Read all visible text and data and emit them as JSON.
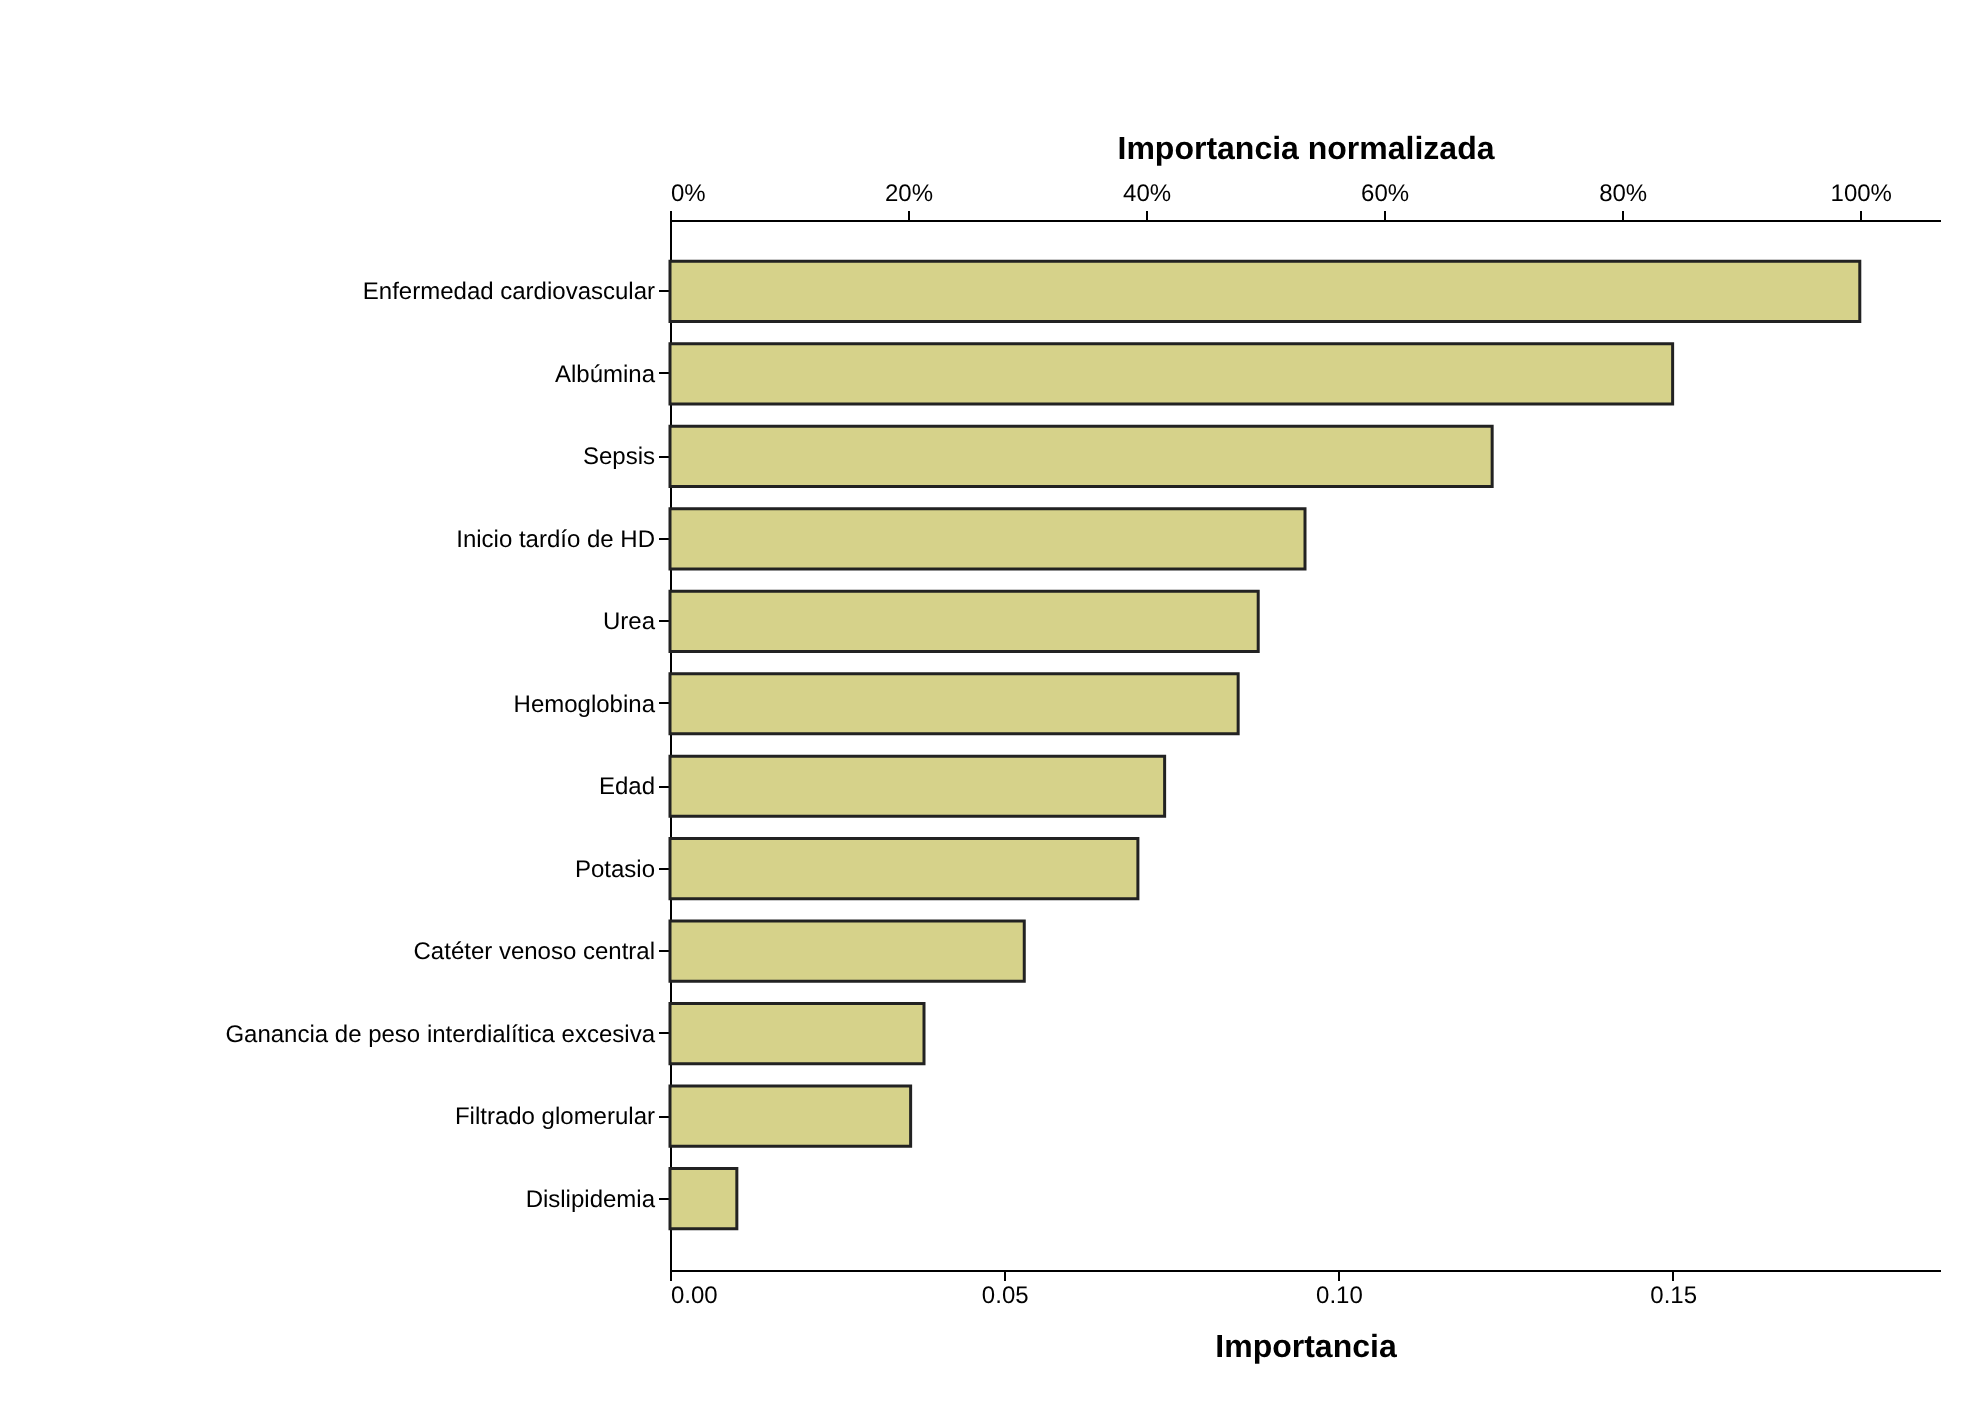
{
  "chart_data": {
    "type": "bar",
    "orientation": "horizontal",
    "xlabel": "Importancia",
    "x2label": "Importancia normalizada",
    "categories": [
      "Enfermedad cardiovascular",
      "Albúmina",
      "Sepsis",
      "Inicio tardío de HD",
      "Urea",
      "Hemoglobina",
      "Edad",
      "Potasio",
      "Catéter venoso central",
      "Ganancia de peso interdialítica excesiva",
      "Filtrado glomerular",
      "Dislipidemia"
    ],
    "values": [
      0.178,
      0.15,
      0.123,
      0.095,
      0.088,
      0.085,
      0.074,
      0.07,
      0.053,
      0.038,
      0.036,
      0.01
    ],
    "color": "#d6d28a",
    "xlim": [
      0,
      0.19
    ],
    "xticks": [
      {
        "value": 0,
        "label": "0.00"
      },
      0.05,
      {
        "value": 0.1,
        "label": "0.10"
      },
      0.15
    ],
    "x2lim": [
      0,
      106.7
    ],
    "x2ticks": [
      {
        "value": 0,
        "label": "0%"
      },
      {
        "value": 20,
        "label": "20%"
      },
      {
        "value": 40,
        "label": "40%"
      },
      {
        "value": 60,
        "label": "60%"
      },
      {
        "value": 80,
        "label": "80%"
      },
      {
        "value": 100,
        "label": "100%"
      }
    ],
    "grid": false
  }
}
